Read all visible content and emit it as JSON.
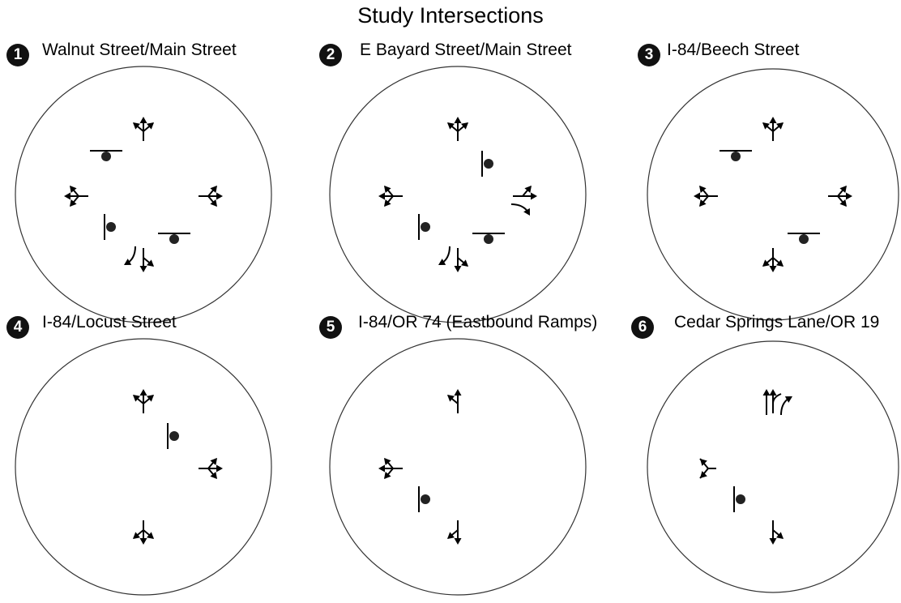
{
  "title": "Study Intersections",
  "intersections": [
    {
      "number": "1",
      "name": "Walnut Street/Main Street",
      "approaches": {
        "north": "left-through-right",
        "west": "left-through-right",
        "east": "left-through-right",
        "south": "through-left + right"
      },
      "stop_controls": [
        "north-west",
        "south-west",
        "south-east"
      ]
    },
    {
      "number": "2",
      "name": "E Bayard Street/Main Street",
      "approaches": {
        "north": "left-through-right",
        "west": "left-through-right",
        "east": "through-left + right",
        "south": "through-left + right"
      },
      "stop_controls": [
        "north-east",
        "south-west",
        "south-east"
      ]
    },
    {
      "number": "3",
      "name": "I-84/Beech Street",
      "approaches": {
        "north": "left-through-right",
        "west": "left-through-right",
        "east": "left-through-right",
        "south": "left-through-right"
      },
      "stop_controls": [
        "north-west",
        "south-east"
      ]
    },
    {
      "number": "4",
      "name": "I-84/Locust Street",
      "approaches": {
        "north": "left-through-right",
        "east": "left-through-right",
        "south": "left-through-right"
      },
      "stop_controls": [
        "north-east"
      ]
    },
    {
      "number": "5",
      "name": "I-84/OR 74 (Eastbound Ramps)",
      "approaches": {
        "north": "through-left",
        "west": "left-through-right",
        "south": "through-right"
      },
      "stop_controls": [
        "south-west"
      ]
    },
    {
      "number": "6",
      "name": "Cedar Springs Lane/OR 19",
      "approaches": {
        "north": "through + right",
        "west": "left-right",
        "south": "through-left"
      },
      "stop_controls": [
        "south-west"
      ]
    }
  ]
}
